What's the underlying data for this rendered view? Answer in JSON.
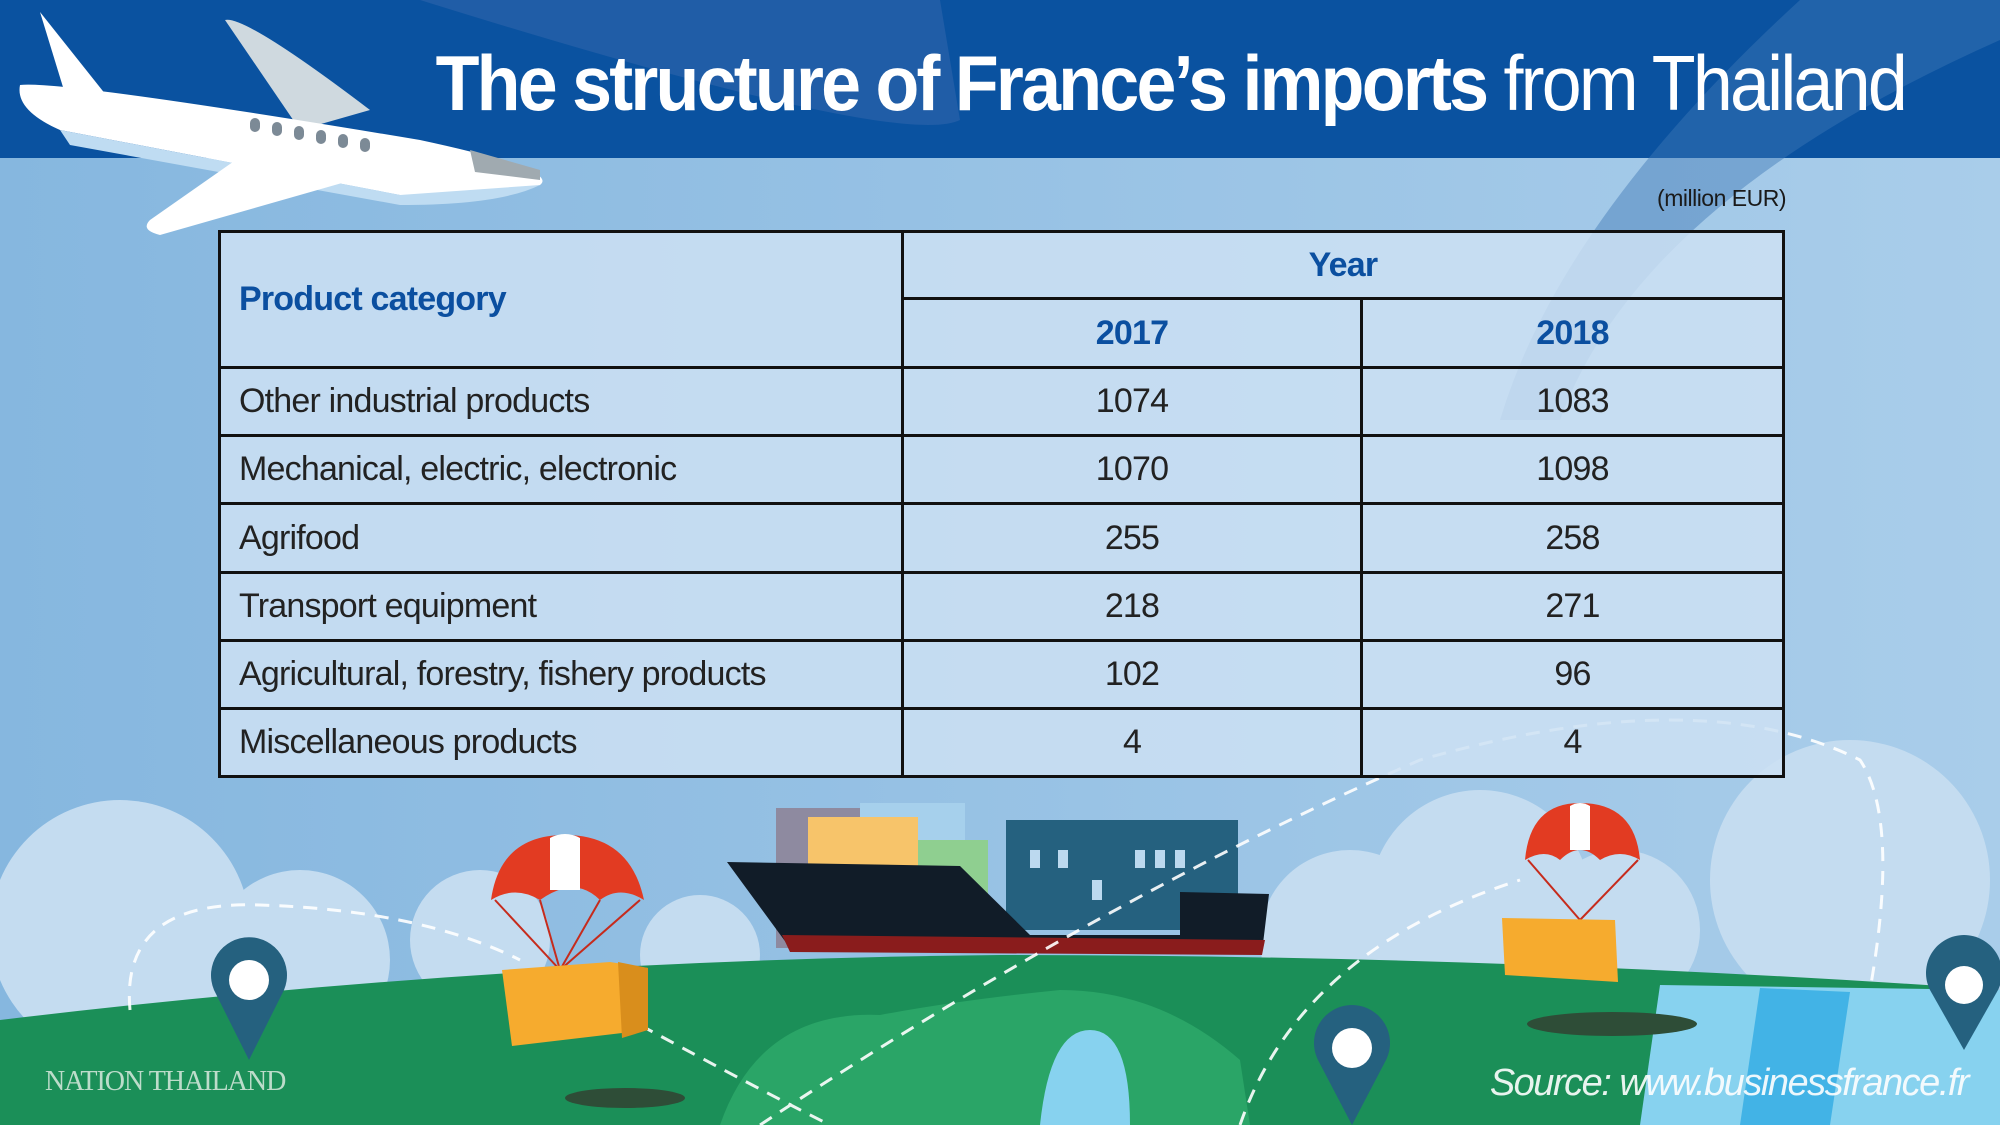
{
  "header": {
    "title_bold": "The structure of France’s imports",
    "title_regular": "from Thailand"
  },
  "unit": "(million EUR)",
  "table": {
    "headers": {
      "category": "Product category",
      "year": "Year",
      "years": [
        "2017",
        "2018"
      ]
    },
    "rows": [
      {
        "category": "Other industrial products",
        "v2017": "1074",
        "v2018": "1083"
      },
      {
        "category": "Mechanical, electric, electronic",
        "v2017": "1070",
        "v2018": "1098"
      },
      {
        "category": "Agrifood",
        "v2017": "255",
        "v2018": "258"
      },
      {
        "category": "Transport equipment",
        "v2017": "218",
        "v2018": "271"
      },
      {
        "category": "Agricultural, forestry, fishery products",
        "v2017": "102",
        "v2018": "96"
      },
      {
        "category": "Miscellaneous products",
        "v2017": "4",
        "v2018": "4"
      }
    ]
  },
  "footer": {
    "logo": "NATION THAILAND",
    "source": "Source: www.businessfrance.fr"
  },
  "colors": {
    "header_band": "#0a52a0",
    "sky": "#8fbde2",
    "ground": "#1b8f58",
    "heading_text": "#0b4fa0"
  }
}
